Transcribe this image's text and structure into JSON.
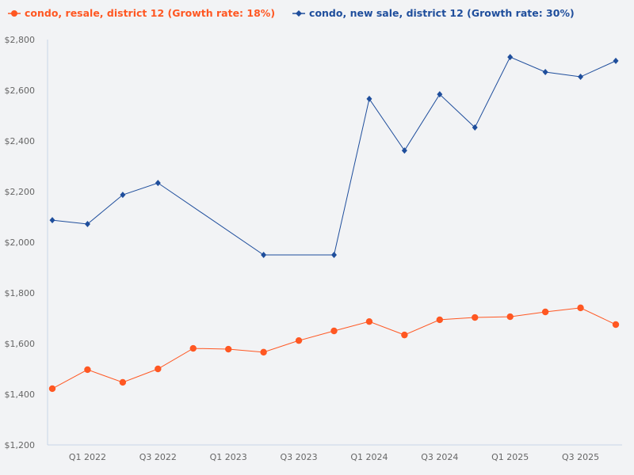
{
  "chart_data": {
    "type": "line",
    "x": [
      "Q4 2021",
      "Q1 2022",
      "Q2 2022",
      "Q3 2022",
      "Q4 2022",
      "Q1 2023",
      "Q2 2023",
      "Q3 2023",
      "Q4 2023",
      "Q1 2024",
      "Q2 2024",
      "Q3 2024",
      "Q4 2024",
      "Q1 2025",
      "Q2 2025",
      "Q3 2025",
      "Q4 2025"
    ],
    "x_tick_labels": [
      "Q1 2022",
      "Q3 2022",
      "Q1 2023",
      "Q3 2023",
      "Q1 2024",
      "Q3 2024",
      "Q1 2025",
      "Q3 2025"
    ],
    "y_tick_labels": [
      "$1,200",
      "$1,400",
      "$1,600",
      "$1,800",
      "$2,000",
      "$2,200",
      "$2,400",
      "$2,600",
      "$2,800"
    ],
    "ylim": [
      1200,
      2800
    ],
    "grid": false,
    "legend_position": "top-left",
    "series": [
      {
        "name": "condo, resale, district 12 (Growth rate: 18%)",
        "color": "#ff5722",
        "marker": "circle",
        "values": [
          1422,
          1497,
          1447,
          1500,
          1581,
          1578,
          1566,
          1612,
          1650,
          1687,
          1634,
          1694,
          1703,
          1706,
          1725,
          1741,
          1675
        ]
      },
      {
        "name": "condo, new sale, district 12 (Growth rate: 30%)",
        "color": "#1f4e9c",
        "marker": "diamond",
        "values": [
          2087,
          2072,
          2187,
          2234,
          null,
          null,
          1950,
          null,
          1950,
          2566,
          2362,
          2584,
          2453,
          2731,
          2672,
          2653,
          2716
        ]
      }
    ]
  }
}
